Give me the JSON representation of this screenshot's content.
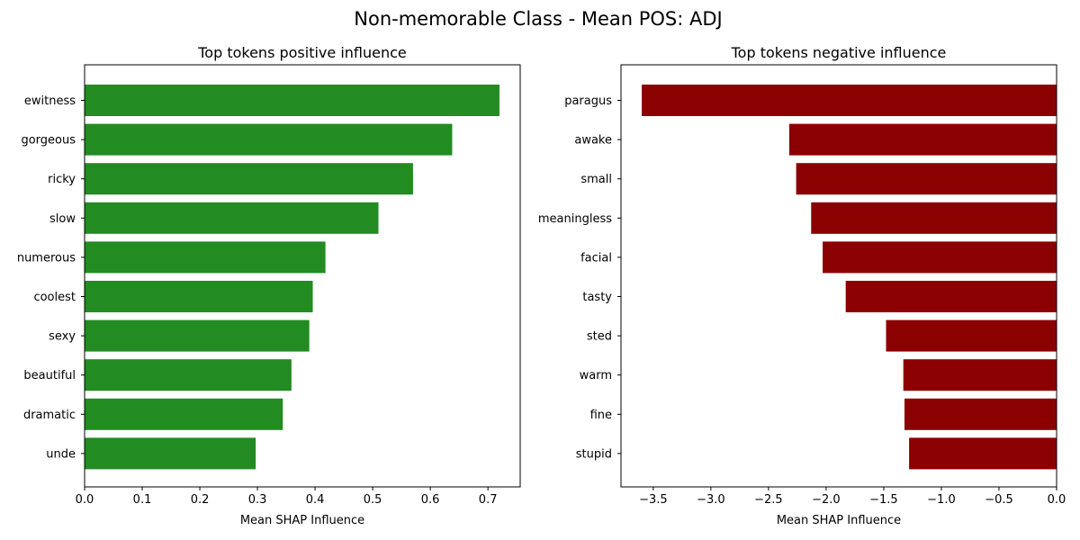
{
  "figure_title": "Non-memorable Class - Mean POS: ADJ",
  "chart_data": [
    {
      "type": "bar",
      "orientation": "horizontal",
      "title": "Top tokens positive influence",
      "xlabel": "Mean SHAP Influence",
      "ylabel": "",
      "xlim": [
        0.0,
        0.756
      ],
      "xticks": [
        0.0,
        0.1,
        0.2,
        0.3,
        0.4,
        0.5,
        0.6,
        0.7
      ],
      "xtick_labels": [
        "0.0",
        "0.1",
        "0.2",
        "0.3",
        "0.4",
        "0.5",
        "0.6",
        "0.7"
      ],
      "color": "#228b22",
      "categories": [
        "ewitness",
        "gorgeous",
        "ricky",
        "slow",
        "numerous",
        "coolest",
        "sexy",
        "beautiful",
        "dramatic",
        "unde"
      ],
      "values": [
        0.72,
        0.638,
        0.57,
        0.51,
        0.418,
        0.396,
        0.39,
        0.359,
        0.344,
        0.297
      ]
    },
    {
      "type": "bar",
      "orientation": "horizontal",
      "title": "Top tokens negative influence",
      "xlabel": "Mean SHAP Influence",
      "ylabel": "",
      "xlim": [
        -3.78,
        0.0
      ],
      "xticks": [
        -3.5,
        -3.0,
        -2.5,
        -2.0,
        -1.5,
        -1.0,
        -0.5,
        0.0
      ],
      "xtick_labels": [
        "−3.5",
        "−3.0",
        "−2.5",
        "−2.0",
        "−1.5",
        "−1.0",
        "−0.5",
        "0.0"
      ],
      "color": "#8b0000",
      "categories": [
        "paragus",
        "awake",
        "small",
        "meaningless",
        "facial",
        "tasty",
        "sted",
        "warm",
        "fine",
        "stupid"
      ],
      "values": [
        -3.6,
        -2.32,
        -2.26,
        -2.13,
        -2.03,
        -1.83,
        -1.48,
        -1.33,
        -1.32,
        -1.28
      ]
    }
  ]
}
